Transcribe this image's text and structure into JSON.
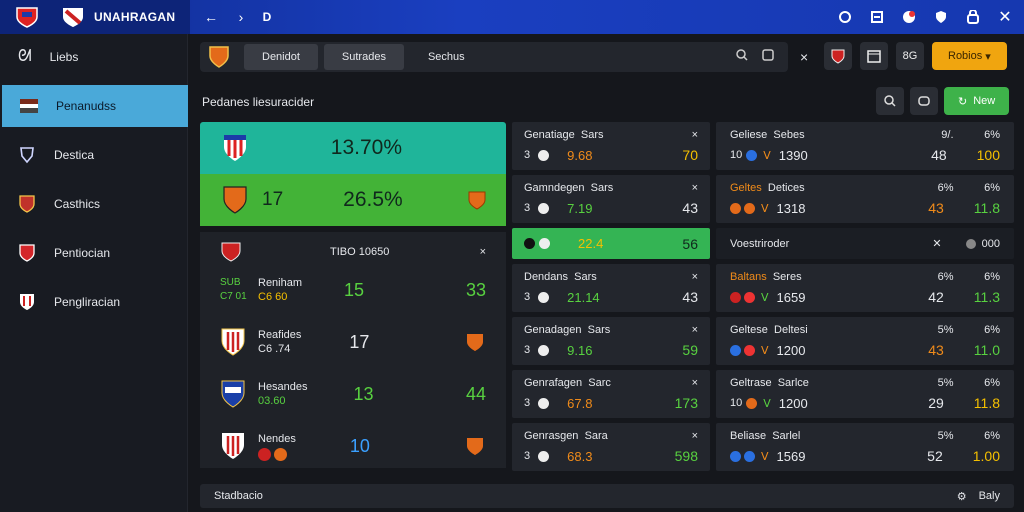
{
  "topbar": {
    "title": "UNAHRAGAN",
    "back": "←",
    "forward": "›",
    "d": "D",
    "icons": [
      "circle-icon",
      "square-icon",
      "notification-icon",
      "shield-icon",
      "lock-icon",
      "close-icon"
    ]
  },
  "sidebar": {
    "items": [
      {
        "label": "Liebs",
        "icon": "swirl-icon"
      },
      {
        "label": "Penanudss",
        "icon": "flag-icon"
      },
      {
        "label": "Destica",
        "icon": "trophy-icon"
      },
      {
        "label": "Casthics",
        "icon": "crest-icon"
      },
      {
        "label": "Pentiocian",
        "icon": "crest-icon"
      },
      {
        "label": "Pengliracian",
        "icon": "crest-icon"
      }
    ]
  },
  "toolbar": {
    "tabs": [
      "Denidot",
      "Sutrades",
      "Sechus"
    ],
    "close": "×"
  },
  "right_tools": {
    "sq1": "",
    "sq2": "",
    "sq3": "8G",
    "accent": "Robios"
  },
  "subheader": {
    "title": "Pedanes liesuracider",
    "new_button": "New"
  },
  "hero": {
    "row1_value": "13.70%",
    "row2_left": "17",
    "row2_value": "26.5%"
  },
  "list": {
    "header": "TIBO 10650",
    "close": "×",
    "rows": [
      {
        "name": "Reniham",
        "sub": "SUB",
        "score": "15",
        "score2": "33",
        "sub2": "C7 01",
        "sub3": "C6 60"
      },
      {
        "name": "Reafides",
        "sub": "C6 .74",
        "score": "17"
      },
      {
        "name": "Hesandes",
        "sub": "03.60",
        "score": "13",
        "score2": "44"
      },
      {
        "name": "Nendes",
        "sub": "",
        "score": "10"
      }
    ]
  },
  "mid": {
    "cards": [
      {
        "a": "Genatiage",
        "b": "Sars",
        "n": "3",
        "v1": "9.68",
        "v2": "70",
        "x": "×"
      },
      {
        "a": "Gamndegen",
        "b": "Sars",
        "n": "3",
        "v1": "7.19",
        "v2": "43",
        "x": "×"
      },
      {
        "a": "",
        "b": "",
        "n": "",
        "v1": "22.4",
        "v2": "56",
        "x": ""
      },
      {
        "a": "Dendans",
        "b": "Sars",
        "n": "3",
        "v1": "21.14",
        "v2": "43",
        "x": "×"
      },
      {
        "a": "Genadagen",
        "b": "Sars",
        "n": "3",
        "v1": "9.16",
        "v2": "59",
        "x": "×"
      },
      {
        "a": "Genrafagen",
        "b": "Sarc",
        "n": "3",
        "v1": "67.8",
        "v2": "173",
        "x": "×"
      },
      {
        "a": "Genrasgen",
        "b": "Sara",
        "n": "3",
        "v1": "68.3",
        "v2": "598",
        "x": "×"
      }
    ]
  },
  "right": {
    "cards": [
      {
        "a": "Geliese",
        "b": "Sebes",
        "p1": "9/.",
        "p2": "6%",
        "n": "10",
        "m": "1390",
        "v1": "48",
        "v2": "100"
      },
      {
        "a": "Geltes",
        "b": "Detices",
        "p1": "6%",
        "p2": "6%",
        "n": "",
        "m": "1318",
        "v1": "43",
        "v2": "11.8"
      },
      {
        "a": "Voestriroder",
        "b": "",
        "p1": "",
        "p2": "000",
        "n": "",
        "m": "",
        "v1": "",
        "v2": ""
      },
      {
        "a": "Baltans",
        "b": "Seres",
        "p1": "6%",
        "p2": "6%",
        "n": "",
        "m": "1659",
        "v1": "42",
        "v2": "11.3"
      },
      {
        "a": "Geltese",
        "b": "Deltesi",
        "p1": "5%",
        "p2": "6%",
        "n": "",
        "m": "1200",
        "v1": "43",
        "v2": "11.0"
      },
      {
        "a": "Geltrase",
        "b": "Sarlce",
        "p1": "5%",
        "p2": "6%",
        "n": "10",
        "m": "1200",
        "v1": "29",
        "v2": "11.8"
      },
      {
        "a": "Beliase",
        "b": "Sarlel",
        "p1": "5%",
        "p2": "6%",
        "n": "",
        "m": "1569",
        "v1": "52",
        "v2": "1.00"
      }
    ]
  },
  "footer": {
    "text": "Stadbacio",
    "right": "Baly"
  }
}
